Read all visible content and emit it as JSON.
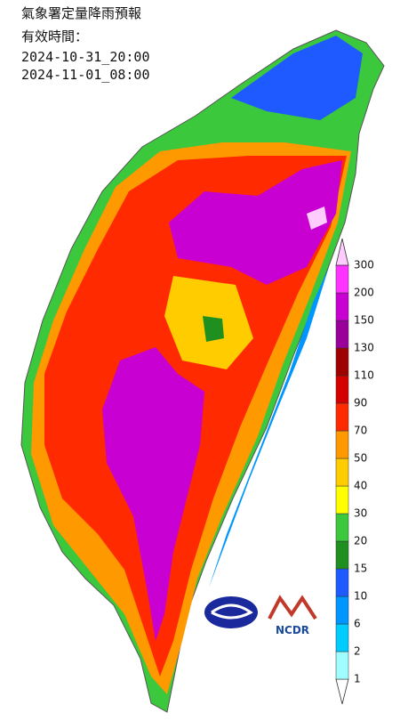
{
  "header": {
    "title": "氣象署定量降雨預報",
    "valid_label": "有效時間：",
    "start": "2024-10-31_20:00",
    "end": "2024-11-01_08:00"
  },
  "legend": {
    "levels": [
      1,
      2,
      6,
      10,
      15,
      20,
      30,
      40,
      50,
      70,
      90,
      110,
      130,
      150,
      200,
      300
    ],
    "colors": [
      "#ffffff",
      "#9ffcff",
      "#00ccff",
      "#0096ff",
      "#1e5aff",
      "#1f8f1f",
      "#3cc83c",
      "#ffff00",
      "#ffcc00",
      "#ff9900",
      "#ff2a00",
      "#d40000",
      "#9e0000",
      "#990099",
      "#c800d2",
      "#ff33ff",
      "#ffccff"
    ]
  },
  "logos": {
    "ncdr": "NCDR"
  }
}
